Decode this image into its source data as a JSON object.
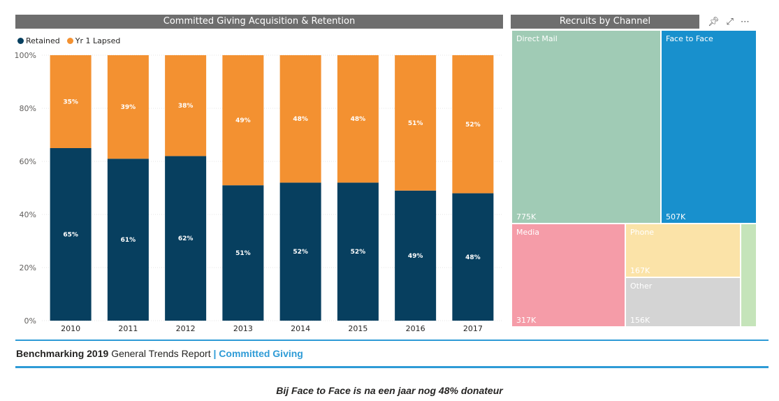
{
  "left_panel": {
    "title": "Committed Giving Acquisition & Retention"
  },
  "right_panel": {
    "title": "Recruits by Channel"
  },
  "header_icons": [
    "pin-icon",
    "focus-mode-icon",
    "more-options-icon"
  ],
  "chart_data": [
    {
      "type": "bar",
      "stacked": true,
      "title": "Committed Giving Acquisition & Retention",
      "categories": [
        "2010",
        "2011",
        "2012",
        "2013",
        "2014",
        "2015",
        "2016",
        "2017"
      ],
      "series": [
        {
          "name": "Retained",
          "color": "#073f5f",
          "values": [
            65,
            61,
            62,
            51,
            52,
            52,
            49,
            48
          ],
          "labels": [
            "65%",
            "61%",
            "62%",
            "51%",
            "52%",
            "52%",
            "49%",
            "48%"
          ]
        },
        {
          "name": "Yr 1 Lapsed",
          "color": "#f39131",
          "values": [
            35,
            39,
            38,
            49,
            48,
            48,
            51,
            52
          ],
          "labels": [
            "35%",
            "39%",
            "38%",
            "49%",
            "48%",
            "48%",
            "51%",
            "52%"
          ]
        }
      ],
      "ylim": [
        0,
        100
      ],
      "yticks": [
        "0%",
        "20%",
        "40%",
        "60%",
        "80%",
        "100%"
      ],
      "grid": true,
      "legend": "top-left"
    },
    {
      "type": "treemap",
      "title": "Recruits by Channel",
      "items": [
        {
          "name": "Direct Mail",
          "value_label": "775K",
          "color": "#a0cbb5"
        },
        {
          "name": "Face to Face",
          "value_label": "507K",
          "color": "#1890cd"
        },
        {
          "name": "Media",
          "value_label": "317K",
          "color": "#f59ca8"
        },
        {
          "name": "Phone",
          "value_label": "167K",
          "color": "#fbe3a8"
        },
        {
          "name": "Other",
          "value_label": "156K",
          "color": "#d4d4d4"
        },
        {
          "name": "",
          "value_label": "",
          "color": "#c5e4ba"
        }
      ]
    }
  ],
  "footer": {
    "brand": "Benchmarking 2019",
    "report": "General Trends Report",
    "section": "| Committed Giving"
  },
  "caption": "Bij Face to Face is na een jaar nog 48% donateur"
}
